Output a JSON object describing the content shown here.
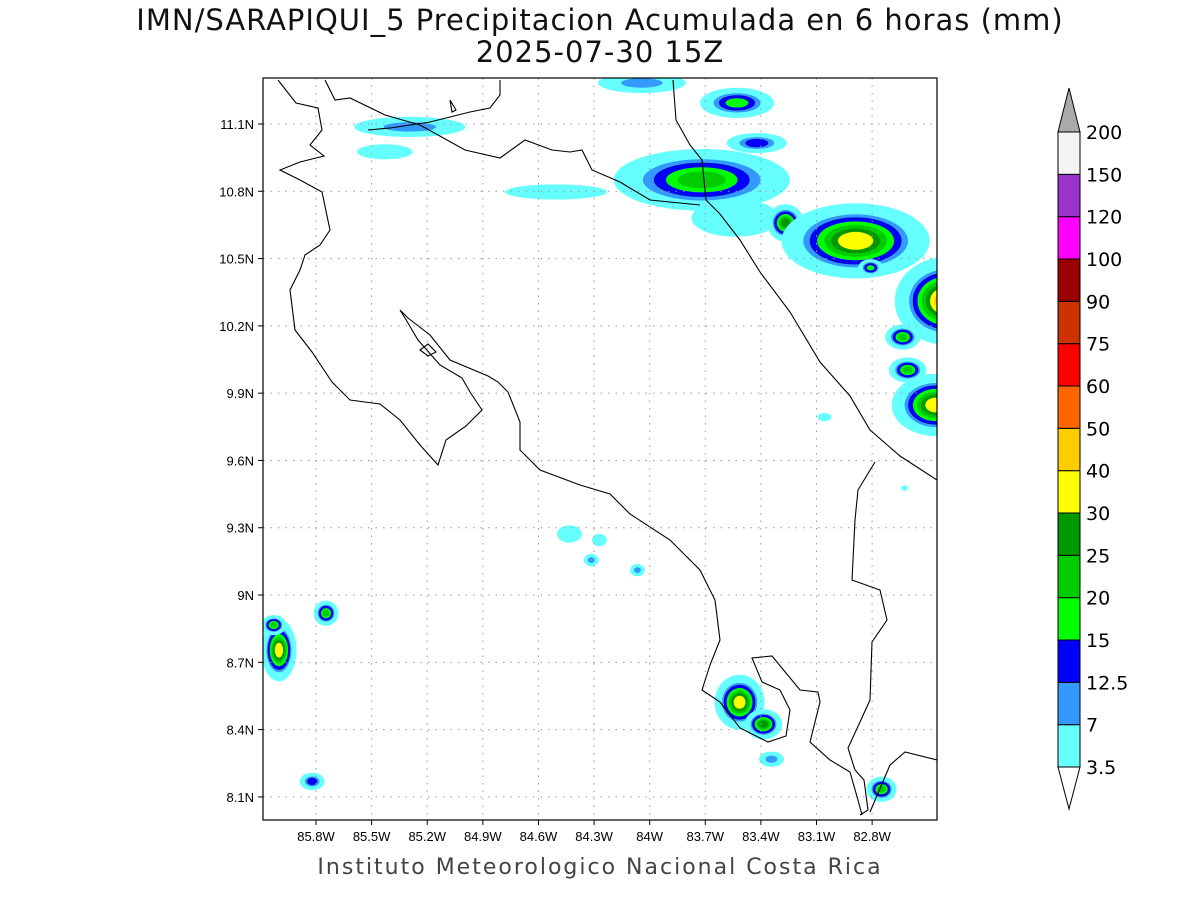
{
  "title": "IMN/SARAPIQUI_5 Precipitacion Acumulada en 6 horas (mm)",
  "subtitle": "2025-07-30 15Z",
  "credit": "Instituto Meteorologico Nacional Costa Rica",
  "map": {
    "lon_range_W": [
      86.086,
      82.45
    ],
    "lat_range_N": [
      7.997,
      11.305
    ],
    "lon_ticks": [
      "85.8W",
      "85.5W",
      "85.2W",
      "84.9W",
      "84.6W",
      "84.3W",
      "84W",
      "83.7W",
      "83.4W",
      "83.1W",
      "82.8W"
    ],
    "lat_ticks": [
      "11.1N",
      "10.8N",
      "10.5N",
      "10.2N",
      "9.9N",
      "9.6N",
      "9.3N",
      "9N",
      "8.7N",
      "8.4N",
      "8.1N"
    ],
    "lon_tick_values": [
      85.8,
      85.5,
      85.2,
      84.9,
      84.6,
      84.3,
      84.0,
      83.7,
      83.4,
      83.1,
      82.8
    ],
    "lat_tick_values": [
      11.1,
      10.8,
      10.5,
      10.2,
      9.9,
      9.6,
      9.3,
      9.0,
      8.7,
      8.4,
      8.1
    ]
  },
  "colorbar": {
    "labels": [
      "3.5",
      "7",
      "12.5",
      "15",
      "20",
      "25",
      "30",
      "40",
      "50",
      "60",
      "75",
      "90",
      "100",
      "120",
      "150",
      "200"
    ],
    "colors": [
      "#66ffff",
      "#3399ff",
      "#0000ff",
      "#00ff00",
      "#00cc00",
      "#009900",
      "#ffff00",
      "#ffcc00",
      "#ff6600",
      "#ff0000",
      "#cc3300",
      "#990000",
      "#ff00ff",
      "#9933cc",
      "#f4f4f4"
    ],
    "over_color": "#aaaaaa",
    "under_color": "#ffffff"
  },
  "precip_cells": [
    {
      "lon": 84.042,
      "lat": 11.283,
      "rlon": 0.19,
      "rlat": 0.036,
      "level": 1
    },
    {
      "lon": 83.529,
      "lat": 11.194,
      "rlon": 0.16,
      "rlat": 0.054,
      "level": 3
    },
    {
      "lon": 85.294,
      "lat": 11.087,
      "rlon": 0.24,
      "rlat": 0.036,
      "level": 1
    },
    {
      "lon": 85.429,
      "lat": 10.976,
      "rlon": 0.12,
      "rlat": 0.027,
      "level": 0
    },
    {
      "lon": 83.719,
      "lat": 10.851,
      "rlon": 0.38,
      "rlat": 0.11,
      "level": 4
    },
    {
      "lon": 83.422,
      "lat": 11.015,
      "rlon": 0.13,
      "rlat": 0.036,
      "level": 2
    },
    {
      "lon": 84.505,
      "lat": 10.797,
      "rlon": 0.22,
      "rlat": 0.027,
      "level": 0
    },
    {
      "lon": 83.537,
      "lat": 10.681,
      "rlon": 0.19,
      "rlat": 0.067,
      "level": 0
    },
    {
      "lon": 83.267,
      "lat": 10.659,
      "rlon": 0.08,
      "rlat": 0.067,
      "level": 5
    },
    {
      "lon": 82.889,
      "lat": 10.579,
      "rlon": 0.32,
      "rlat": 0.134,
      "level": 6
    },
    {
      "lon": 82.403,
      "lat": 10.311,
      "rlon": 0.22,
      "rlat": 0.156,
      "level": 7
    },
    {
      "lon": 82.808,
      "lat": 10.459,
      "rlon": 0.054,
      "rlat": 0.031,
      "level": 3
    },
    {
      "lon": 82.635,
      "lat": 10.15,
      "rlon": 0.076,
      "rlat": 0.045,
      "level": 4
    },
    {
      "lon": 82.608,
      "lat": 10.003,
      "rlon": 0.081,
      "rlat": 0.045,
      "level": 4
    },
    {
      "lon": 82.457,
      "lat": 9.847,
      "rlon": 0.19,
      "rlat": 0.111,
      "level": 6
    },
    {
      "lon": 82.349,
      "lat": 9.602,
      "rlon": 0.054,
      "rlat": 0.045,
      "level": 1
    },
    {
      "lon": 84.433,
      "lat": 9.272,
      "rlon": 0.054,
      "rlat": 0.031,
      "level": 0
    },
    {
      "lon": 84.271,
      "lat": 9.245,
      "rlon": 0.032,
      "rlat": 0.022,
      "level": 0
    },
    {
      "lon": 84.315,
      "lat": 9.156,
      "rlon": 0.032,
      "rlat": 0.022,
      "level": 1
    },
    {
      "lon": 84.066,
      "lat": 9.111,
      "rlon": 0.032,
      "rlat": 0.022,
      "level": 1
    },
    {
      "lon": 86.0,
      "lat": 8.754,
      "rlon": 0.076,
      "rlat": 0.111,
      "level": 6
    },
    {
      "lon": 86.028,
      "lat": 8.866,
      "rlon": 0.054,
      "rlat": 0.036,
      "level": 4
    },
    {
      "lon": 85.746,
      "lat": 8.919,
      "rlon": 0.054,
      "rlat": 0.045,
      "level": 4
    },
    {
      "lon": 85.821,
      "lat": 8.169,
      "rlon": 0.054,
      "rlat": 0.031,
      "level": 2
    },
    {
      "lon": 83.515,
      "lat": 8.522,
      "rlon": 0.108,
      "rlat": 0.098,
      "level": 6
    },
    {
      "lon": 83.386,
      "lat": 8.424,
      "rlon": 0.081,
      "rlat": 0.054,
      "level": 5
    },
    {
      "lon": 83.343,
      "lat": 8.268,
      "rlon": 0.054,
      "rlat": 0.027,
      "level": 1
    },
    {
      "lon": 82.749,
      "lat": 8.134,
      "rlon": 0.065,
      "rlat": 0.045,
      "level": 4
    },
    {
      "lon": 83.057,
      "lat": 9.793,
      "rlon": 0.03,
      "rlat": 0.015,
      "level": 0
    },
    {
      "lon": 82.624,
      "lat": 9.477,
      "rlon": 0.015,
      "rlat": 0.01,
      "level": 0
    }
  ]
}
